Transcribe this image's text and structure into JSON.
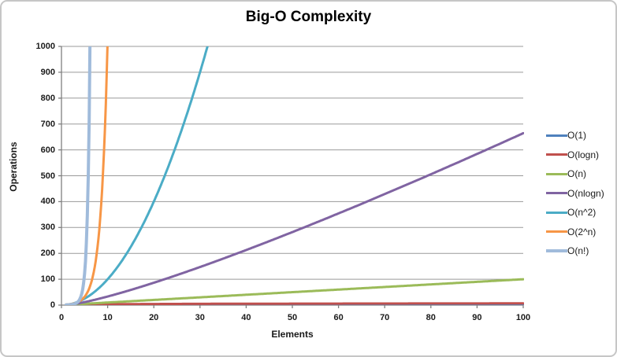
{
  "chart_data": {
    "type": "line",
    "title": "Big-O Complexity",
    "xlabel": "Elements",
    "ylabel": "Operations",
    "xlim": [
      0,
      100
    ],
    "ylim": [
      0,
      1000
    ],
    "x_ticks": [
      0,
      10,
      20,
      30,
      40,
      50,
      60,
      70,
      80,
      90,
      100
    ],
    "y_ticks": [
      0,
      100,
      200,
      300,
      400,
      500,
      600,
      700,
      800,
      900,
      1000
    ],
    "grid": "horizontal-only",
    "legend_position": "right",
    "sample_range": [
      1,
      100
    ],
    "series": [
      {
        "id": "o1",
        "name": "O(1)",
        "formula": "1",
        "color": "#4F81BD",
        "width": 3
      },
      {
        "id": "ologn",
        "name": "O(logn)",
        "formula": "log2(n)",
        "color": "#C0504D",
        "width": 3
      },
      {
        "id": "on",
        "name": "O(n)",
        "formula": "n",
        "color": "#9BBB59",
        "width": 3
      },
      {
        "id": "onlogn",
        "name": "O(nlogn)",
        "formula": "n*log2(n)",
        "color": "#8064A2",
        "width": 3
      },
      {
        "id": "on2",
        "name": "O(n^2)",
        "formula": "n^2",
        "color": "#4BACC6",
        "width": 3
      },
      {
        "id": "o2n",
        "name": "O(2^n)",
        "formula": "2^n",
        "color": "#F79646",
        "width": 3
      },
      {
        "id": "onfact",
        "name": "O(n!)",
        "formula": "n!",
        "color": "#A0BBDB",
        "width": 4
      }
    ]
  },
  "colors": {
    "gridline": "#9A9A9A",
    "axis": "#7F7F7F",
    "text": "#1A1A1A",
    "border": "#C6C6C6",
    "background": "#FFFFFF"
  }
}
